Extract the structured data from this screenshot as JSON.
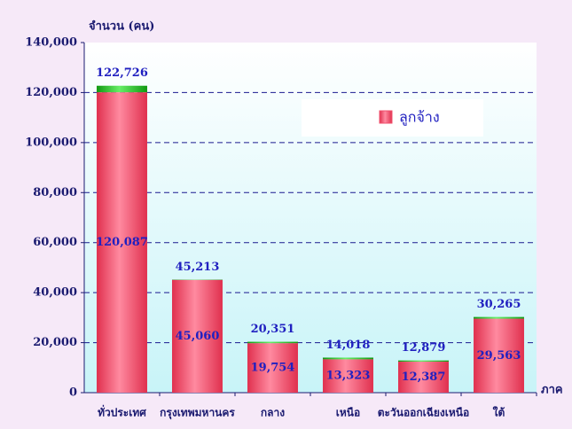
{
  "chart_data": {
    "type": "bar",
    "title": "จำนวน (คน)",
    "x_label": "ภาค",
    "categories": [
      "ทั่วประเทศ",
      "กรุงเทพมหานคร",
      "กลาง",
      "เหนือ",
      "ตะวันออกเฉียงเหนือ",
      "ใต้"
    ],
    "series": [
      {
        "name": "ลูกจ้าง",
        "color": "#f0506e",
        "values": [
          120087,
          45060,
          19754,
          13323,
          12387,
          29563
        ],
        "value_labels": [
          "120,087",
          "45,060",
          "19,754",
          "13,323",
          "12,387",
          "29,563"
        ]
      }
    ],
    "totals": [
      122726,
      45213,
      20351,
      14018,
      12879,
      30265
    ],
    "total_labels": [
      "122,726",
      "45,213",
      "20,351",
      "14,018",
      "12,879",
      "30,265"
    ],
    "total_color": "#22bb22",
    "ylim": [
      0,
      140000
    ],
    "yticks": [
      0,
      {
        "value": 20000,
        "label": "20,000"
      },
      {
        "value": 40000,
        "label": "40,000"
      },
      {
        "value": 60000,
        "label": "60,000"
      },
      {
        "value": 80000,
        "label": "80,000"
      },
      {
        "value": 100000,
        "label": "100,000"
      },
      {
        "value": 120000,
        "label": "120,000"
      },
      {
        "value": 140000,
        "label": "140,000"
      }
    ],
    "grid": true,
    "legend": "upper right"
  }
}
